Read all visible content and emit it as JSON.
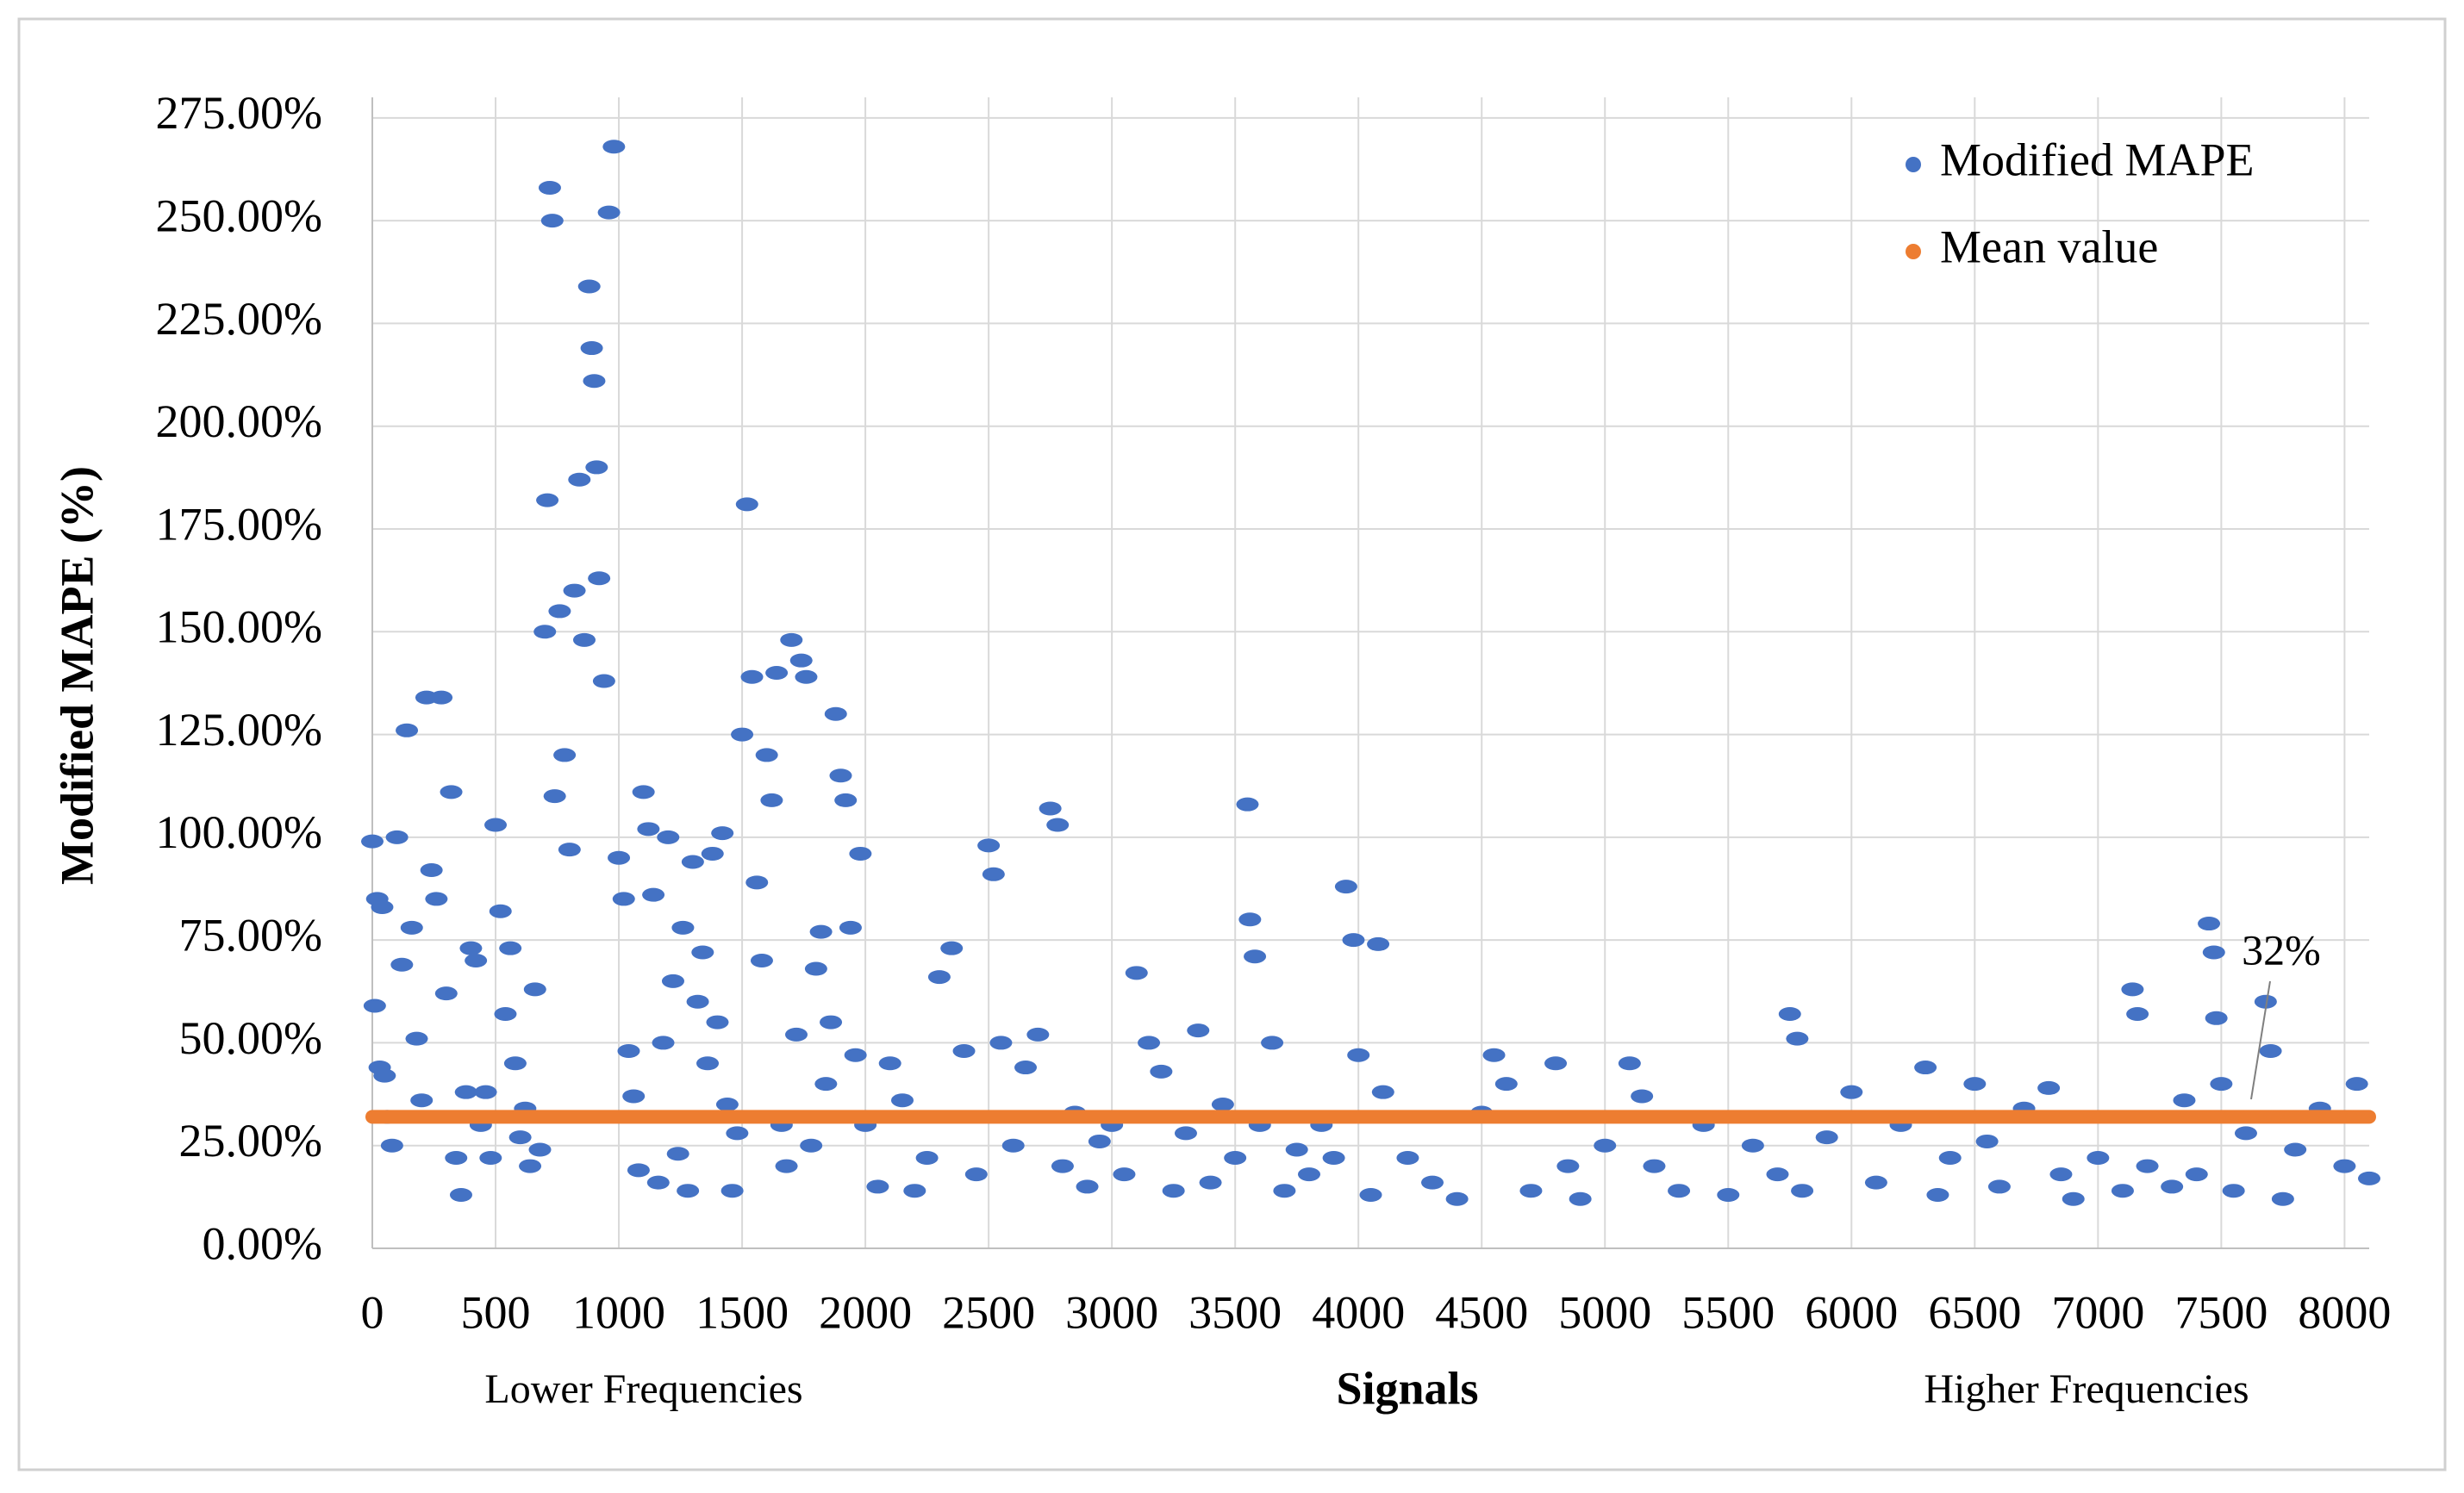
{
  "chart_data": {
    "type": "scatter",
    "x_label": "Signals",
    "y_label": "Modified  MAPE (%)",
    "annotations": [
      "Lower Frequencies",
      "Higher Frequencies",
      "32%"
    ],
    "xlim": [
      0,
      8100
    ],
    "ylim": [
      0,
      280
    ],
    "xticks": [
      0,
      500,
      1000,
      1500,
      2000,
      2500,
      3000,
      3500,
      4000,
      4500,
      5000,
      5500,
      6000,
      6500,
      7000,
      7500,
      8000
    ],
    "yticks": [
      {
        "value": 0,
        "label": "0.00%"
      },
      {
        "value": 25,
        "label": "25.00%"
      },
      {
        "value": 50,
        "label": "50.00%"
      },
      {
        "value": 75,
        "label": "75.00%"
      },
      {
        "value": 100,
        "label": "100.00%"
      },
      {
        "value": 125,
        "label": "125.00%"
      },
      {
        "value": 150,
        "label": "150.00%"
      },
      {
        "value": 175,
        "label": "175.00%"
      },
      {
        "value": 200,
        "label": "200.00%"
      },
      {
        "value": 225,
        "label": "225.00%"
      },
      {
        "value": 250,
        "label": "250.00%"
      },
      {
        "value": 275,
        "label": "275.00%"
      }
    ],
    "grid": true,
    "legend": "top-right",
    "series": [
      {
        "name": "Modified MAPE",
        "color": "#4472c4",
        "type": "scatter",
        "x": [
          0,
          20,
          40,
          10,
          30,
          50,
          60,
          80,
          100,
          120,
          140,
          160,
          180,
          200,
          220,
          240,
          260,
          280,
          300,
          320,
          340,
          360,
          380,
          400,
          420,
          440,
          460,
          480,
          500,
          520,
          540,
          560,
          580,
          600,
          620,
          640,
          660,
          680,
          700,
          710,
          720,
          730,
          740,
          760,
          780,
          800,
          820,
          840,
          860,
          880,
          890,
          900,
          910,
          920,
          940,
          960,
          980,
          1000,
          1020,
          1040,
          1060,
          1080,
          1100,
          1120,
          1140,
          1160,
          1180,
          1200,
          1220,
          1240,
          1260,
          1280,
          1300,
          1320,
          1340,
          1360,
          1380,
          1400,
          1420,
          1440,
          1460,
          1480,
          1500,
          1520,
          1540,
          1560,
          1580,
          1600,
          1620,
          1640,
          1660,
          1680,
          1700,
          1720,
          1740,
          1760,
          1780,
          1800,
          1820,
          1840,
          1860,
          1880,
          1900,
          1920,
          1940,
          1960,
          1980,
          2000,
          2050,
          2100,
          2150,
          2200,
          2250,
          2300,
          2350,
          2400,
          2450,
          2500,
          2520,
          2550,
          2600,
          2650,
          2700,
          2750,
          2780,
          2800,
          2850,
          2900,
          2950,
          3000,
          3050,
          3100,
          3150,
          3200,
          3250,
          3300,
          3350,
          3400,
          3450,
          3500,
          3550,
          3560,
          3580,
          3600,
          3650,
          3700,
          3750,
          3800,
          3850,
          3900,
          3950,
          3980,
          4000,
          4050,
          4080,
          4100,
          4200,
          4300,
          4400,
          4500,
          4550,
          4600,
          4700,
          4800,
          4850,
          4900,
          5000,
          5100,
          5150,
          5200,
          5300,
          5400,
          5500,
          5600,
          5700,
          5750,
          5780,
          5800,
          5900,
          6000,
          6100,
          6200,
          6300,
          6350,
          6400,
          6500,
          6550,
          6600,
          6700,
          6800,
          6850,
          6900,
          7000,
          7100,
          7140,
          7160,
          7200,
          7300,
          7350,
          7400,
          7450,
          7470,
          7480,
          7500,
          7550,
          7600,
          7680,
          7700,
          7750,
          7800,
          7900,
          8000,
          8050,
          8100
        ],
        "values": [
          99,
          85,
          83,
          59,
          44,
          42,
          32,
          25,
          100,
          69,
          126,
          78,
          51,
          36,
          134,
          92,
          85,
          134,
          62,
          111,
          22,
          13,
          38,
          73,
          70,
          30,
          38,
          22,
          103,
          82,
          57,
          73,
          45,
          27,
          34,
          20,
          63,
          24,
          150,
          182,
          258,
          250,
          110,
          155,
          120,
          97,
          160,
          187,
          148,
          234,
          219,
          211,
          190,
          163,
          138,
          252,
          268,
          95,
          85,
          48,
          37,
          19,
          111,
          102,
          86,
          16,
          50,
          100,
          65,
          23,
          78,
          14,
          94,
          60,
          72,
          45,
          96,
          55,
          101,
          35,
          14,
          28,
          125,
          181,
          139,
          89,
          70,
          120,
          109,
          140,
          30,
          20,
          148,
          52,
          143,
          139,
          25,
          68,
          77,
          40,
          55,
          130,
          115,
          109,
          78,
          47,
          96,
          30,
          15,
          45,
          36,
          14,
          22,
          66,
          73,
          48,
          18,
          98,
          91,
          50,
          25,
          44,
          52,
          107,
          103,
          20,
          33,
          15,
          26,
          30,
          18,
          67,
          50,
          43,
          14,
          28,
          53,
          16,
          35,
          22,
          108,
          80,
          71,
          30,
          50,
          14,
          24,
          18,
          30,
          22,
          88,
          75,
          47,
          13,
          74,
          38,
          22,
          16,
          12,
          33,
          47,
          40,
          14,
          45,
          20,
          12,
          25,
          45,
          37,
          20,
          14,
          30,
          13,
          25,
          18,
          57,
          51,
          14,
          27,
          38,
          16,
          30,
          44,
          13,
          22,
          40,
          26,
          15,
          34,
          39,
          18,
          12,
          22,
          14,
          63,
          57,
          20,
          15,
          36,
          18,
          79,
          72,
          56,
          40,
          14,
          28,
          60,
          48,
          12,
          24,
          34,
          20,
          40,
          17
        ]
      },
      {
        "name": "Mean value",
        "color": "#ed7d31",
        "type": "line",
        "x": [
          0,
          8100
        ],
        "values": [
          32,
          32
        ]
      }
    ]
  }
}
